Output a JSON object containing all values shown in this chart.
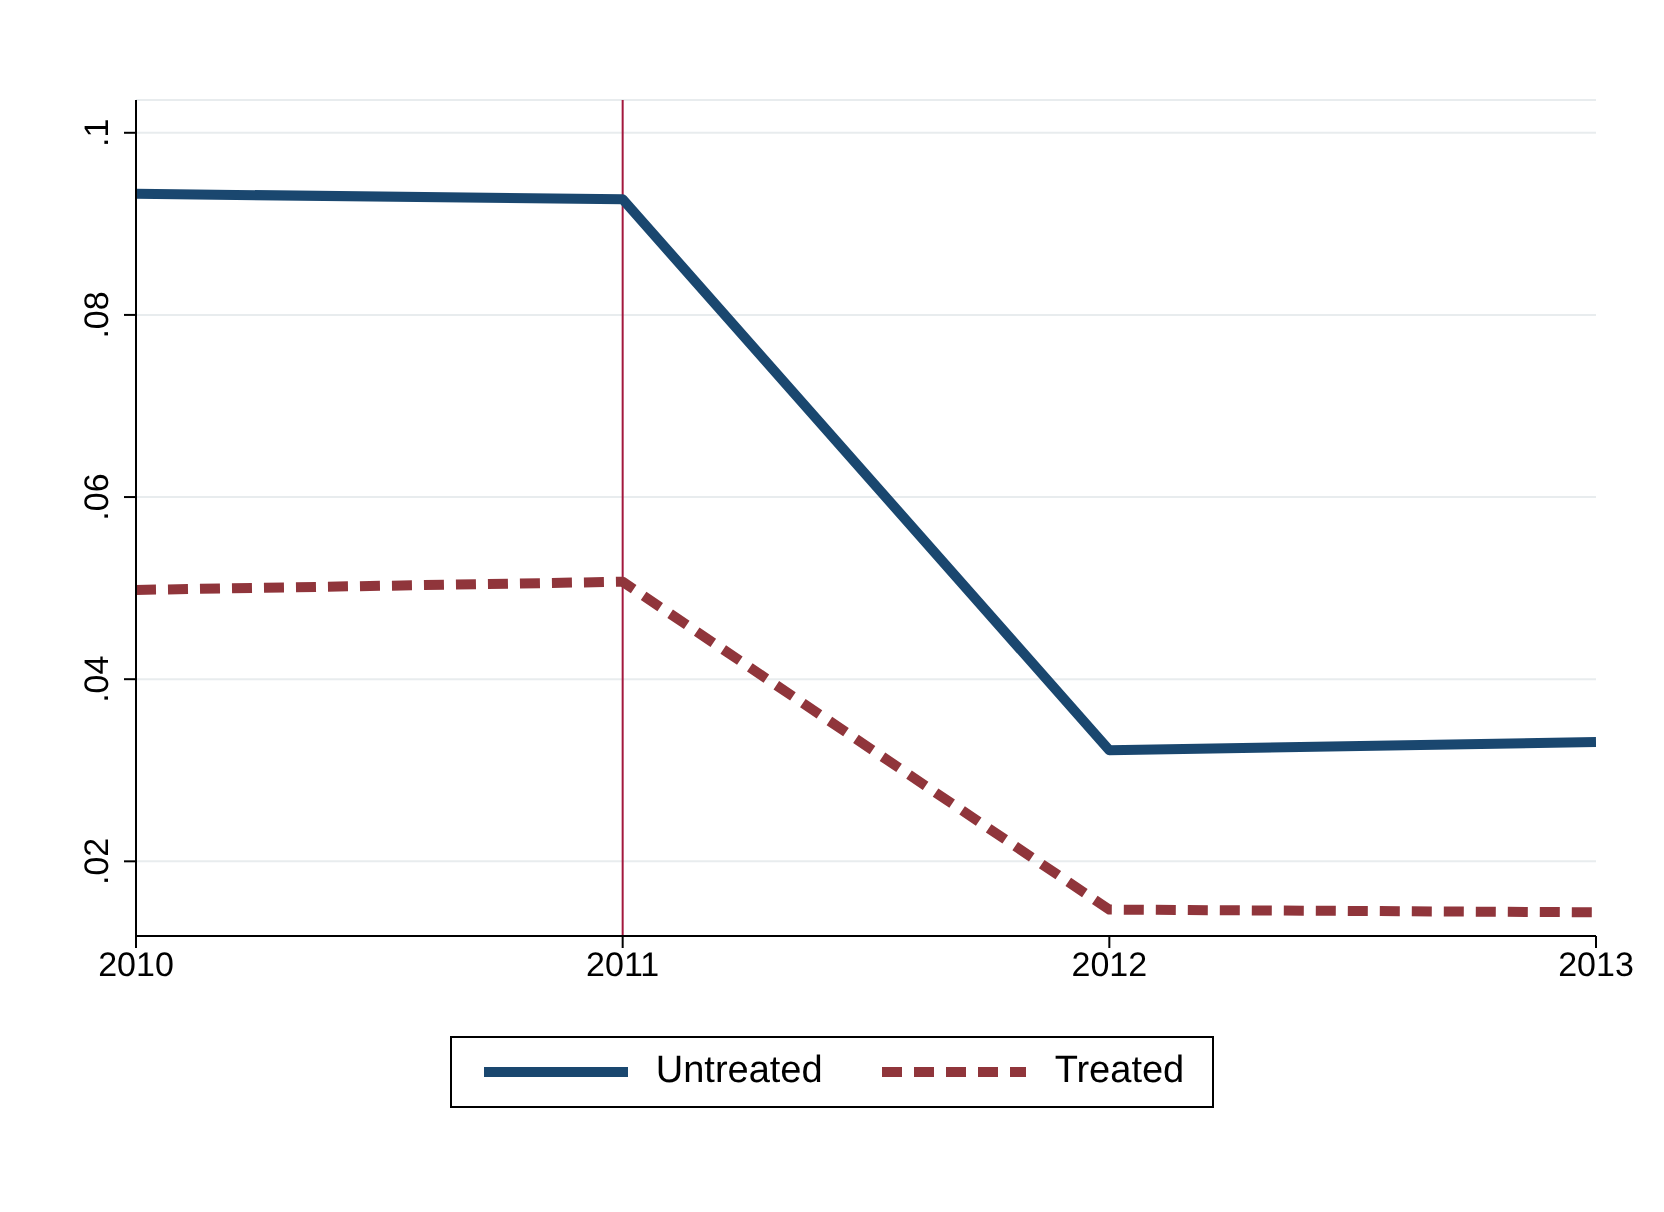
{
  "chart_data": {
    "type": "line",
    "x": [
      2010,
      2011,
      2012,
      2013
    ],
    "series": [
      {
        "name": "Untreated",
        "color": "#1a476f",
        "line_style": "solid",
        "values": [
          0.0933,
          0.0927,
          0.0322,
          0.0331
        ]
      },
      {
        "name": "Treated",
        "color": "#90353b",
        "line_style": "dashed",
        "values": [
          0.0498,
          0.0507,
          0.0147,
          0.0144
        ]
      }
    ],
    "xlim": [
      2010,
      2013
    ],
    "xticks": [
      2010,
      2011,
      2012,
      2013
    ],
    "ylim": [
      0.0118,
      0.1036
    ],
    "yticks": [
      {
        "value": 0.02,
        "label": ".02"
      },
      {
        "value": 0.04,
        "label": ".04"
      },
      {
        "value": 0.06,
        "label": ".06"
      },
      {
        "value": 0.08,
        "label": ".08"
      },
      {
        "value": 0.1,
        "label": ".1"
      }
    ],
    "grid": "y",
    "legend": "bottom",
    "marker": "none",
    "ref_lines": [
      {
        "axis": "x",
        "value": 2011,
        "color": "#a3183d"
      }
    ]
  }
}
